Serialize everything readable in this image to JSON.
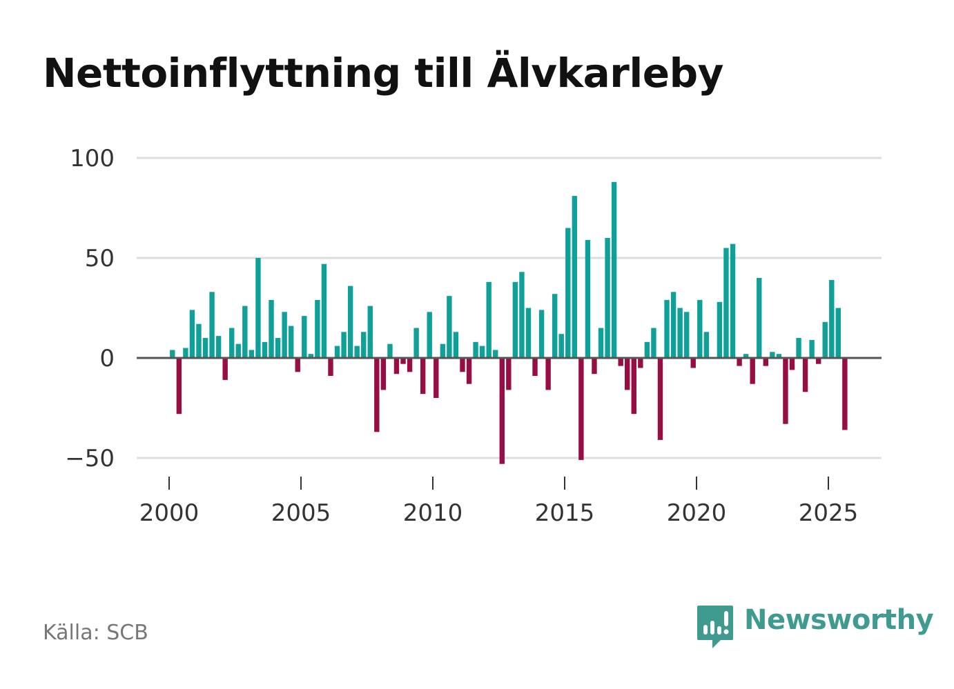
{
  "title": "Nettoinflyttning till Älvkarleby",
  "source": "Källa: SCB",
  "brand": {
    "name": "Newsworthy",
    "icon": "newsworthy-logo-icon",
    "color": "#3f9a8f"
  },
  "colors": {
    "positive": "#0fa09a",
    "negative": "#960e43",
    "grid": "#dddddd",
    "zero_line": "#555555"
  },
  "chart_data": {
    "type": "bar",
    "title": "Nettoinflyttning till Älvkarleby",
    "xlabel": "",
    "ylabel": "",
    "x_start": 2000,
    "x_step_years": 0.25,
    "x_first_offset": 0.125,
    "xlim": [
      1999.2,
      2027.2
    ],
    "ylim": [
      -60,
      100
    ],
    "y_ticks": [
      100,
      50,
      0,
      -50
    ],
    "y_tick_labels": [
      "100",
      "50",
      "0",
      "−50"
    ],
    "x_ticks": [
      2000,
      2005,
      2010,
      2015,
      2020,
      2025
    ],
    "x_tick_labels": [
      "2000",
      "2005",
      "2010",
      "2015",
      "2020",
      "2025"
    ],
    "grid": true,
    "quarters": [
      "2000Q1",
      "2000Q2",
      "2000Q3",
      "2000Q4",
      "2001Q1",
      "2001Q2",
      "2001Q3",
      "2001Q4",
      "2002Q1",
      "2002Q2",
      "2002Q3",
      "2002Q4",
      "2003Q1",
      "2003Q2",
      "2003Q3",
      "2003Q4",
      "2004Q1",
      "2004Q2",
      "2004Q3",
      "2004Q4",
      "2005Q1",
      "2005Q2",
      "2005Q3",
      "2005Q4",
      "2006Q1",
      "2006Q2",
      "2006Q3",
      "2006Q4",
      "2007Q1",
      "2007Q2",
      "2007Q3",
      "2007Q4",
      "2008Q1",
      "2008Q2",
      "2008Q3",
      "2008Q4",
      "2009Q1",
      "2009Q2",
      "2009Q3",
      "2009Q4",
      "2010Q1",
      "2010Q2",
      "2010Q3",
      "2010Q4",
      "2011Q1",
      "2011Q2",
      "2011Q3",
      "2011Q4",
      "2012Q1",
      "2012Q2",
      "2012Q3",
      "2012Q4",
      "2013Q1",
      "2013Q2",
      "2013Q3",
      "2013Q4",
      "2014Q1",
      "2014Q2",
      "2014Q3",
      "2014Q4",
      "2015Q1",
      "2015Q2",
      "2015Q3",
      "2015Q4",
      "2016Q1",
      "2016Q2",
      "2016Q3",
      "2016Q4",
      "2017Q1",
      "2017Q2",
      "2017Q3",
      "2017Q4",
      "2018Q1",
      "2018Q2",
      "2018Q3",
      "2018Q4",
      "2019Q1",
      "2019Q2",
      "2019Q3",
      "2019Q4",
      "2020Q1",
      "2020Q2",
      "2020Q3",
      "2020Q4",
      "2021Q1",
      "2021Q2",
      "2021Q3",
      "2021Q4",
      "2022Q1",
      "2022Q2",
      "2022Q3",
      "2022Q4",
      "2023Q1",
      "2023Q2",
      "2023Q3",
      "2023Q4",
      "2024Q1",
      "2024Q2",
      "2024Q3",
      "2024Q4",
      "2025Q1",
      "2025Q2",
      "2025Q3"
    ],
    "values": [
      4,
      -28,
      5,
      24,
      17,
      10,
      33,
      11,
      -11,
      15,
      7,
      26,
      4,
      50,
      8,
      29,
      10,
      23,
      16,
      -7,
      21,
      2,
      29,
      47,
      -9,
      6,
      13,
      36,
      6,
      13,
      26,
      -37,
      -16,
      7,
      -8,
      -3,
      -7,
      15,
      -18,
      23,
      -20,
      7,
      31,
      13,
      -7,
      -13,
      8,
      6,
      38,
      4,
      -53,
      -16,
      38,
      43,
      25,
      -9,
      24,
      -16,
      32,
      12,
      65,
      81,
      -51,
      59,
      -8,
      15,
      60,
      88,
      -4,
      -16,
      -28,
      -5,
      8,
      15,
      -41,
      29,
      33,
      25,
      23,
      -5,
      29,
      13,
      0,
      28,
      55,
      57,
      -4,
      2,
      -13,
      40,
      -4,
      3,
      2,
      -33,
      -6,
      10,
      -17,
      9,
      -3,
      18,
      39,
      25,
      -36
    ]
  }
}
